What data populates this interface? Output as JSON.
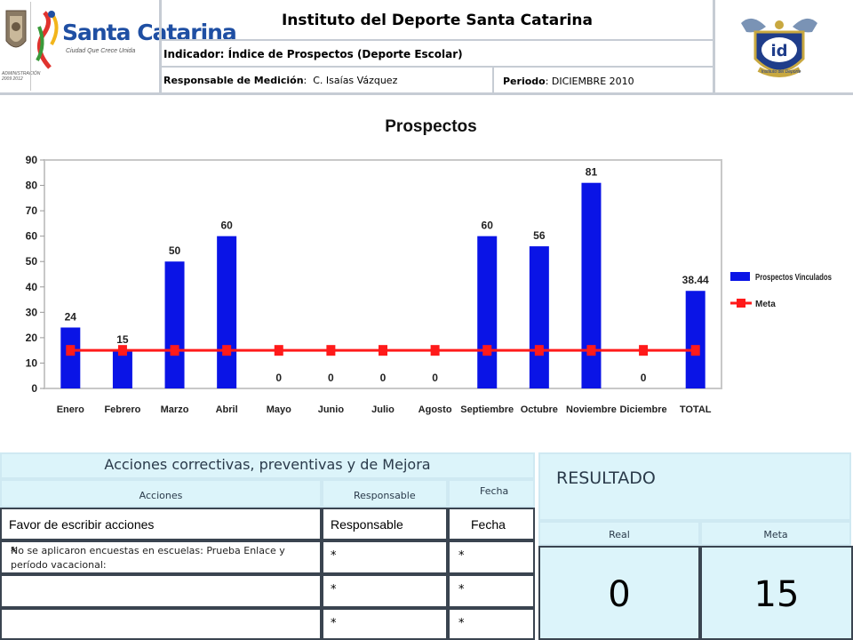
{
  "header": {
    "logo_text": "Santa Catarina",
    "logo_tagline": "Ciudad Que Crece Unida",
    "logo_admin": "ADMINISTRACIÓN 2009 2012",
    "title": "Instituto del Deporte Santa Catarina",
    "indicator": "Indicador: Índice de Prospectos (Deporte Escolar)",
    "responsable_label": "Responsable de Medición",
    "responsable_value": "C. Isaías Vázquez",
    "periodo_label": "Periodo",
    "periodo_value": "DICIEMBRE 2010",
    "right_logo_text": "id",
    "right_logo_caption": "Instituto del Deporte"
  },
  "chart_data": {
    "type": "bar",
    "title": "Prospectos",
    "categories": [
      "Enero",
      "Febrero",
      "Marzo",
      "Abril",
      "Mayo",
      "Junio",
      "Julio",
      "Agosto",
      "Septiembre",
      "Octubre",
      "Noviembre",
      "Diciembre",
      "TOTAL"
    ],
    "series": [
      {
        "name": "Prospectos Vinculados",
        "type": "bar",
        "color": "#0a14e6",
        "values": [
          24,
          15,
          50,
          60,
          0,
          0,
          0,
          0,
          60,
          56,
          81,
          0,
          38.44
        ]
      },
      {
        "name": "Meta",
        "type": "line",
        "color": "#ff1a1a",
        "values": [
          15,
          15,
          15,
          15,
          15,
          15,
          15,
          15,
          15,
          15,
          15,
          15,
          15
        ]
      }
    ],
    "data_labels": [
      "24",
      "15",
      "50",
      "60",
      "0",
      "0",
      "0",
      "0",
      "60",
      "56",
      "81",
      "0",
      "38.44"
    ],
    "yticks": [
      0,
      10,
      20,
      30,
      40,
      50,
      60,
      70,
      80,
      90
    ],
    "ylim": [
      0,
      90
    ],
    "grid": false,
    "legend_position": "right"
  },
  "actions": {
    "title": "Acciones correctivas, preventivas y de Mejora",
    "col_acciones": "Acciones",
    "col_responsable": "Responsable",
    "col_fecha": "Fecha",
    "row1": {
      "accion": "Favor de escribir acciones",
      "responsable": "Responsable",
      "fecha": "Fecha"
    },
    "row2": {
      "marker": "*",
      "accion": "No se aplicaron encuestas en escuelas: Prueba Enlace y período vacacional:",
      "responsable": "*",
      "fecha": "*"
    },
    "row3": {
      "responsable": "*",
      "fecha": "*"
    },
    "row4": {
      "responsable": "*",
      "fecha": "*"
    }
  },
  "resultado": {
    "title": "RESULTADO",
    "real_label": "Real",
    "meta_label": "Meta",
    "real_value": "0",
    "meta_value": "15"
  }
}
